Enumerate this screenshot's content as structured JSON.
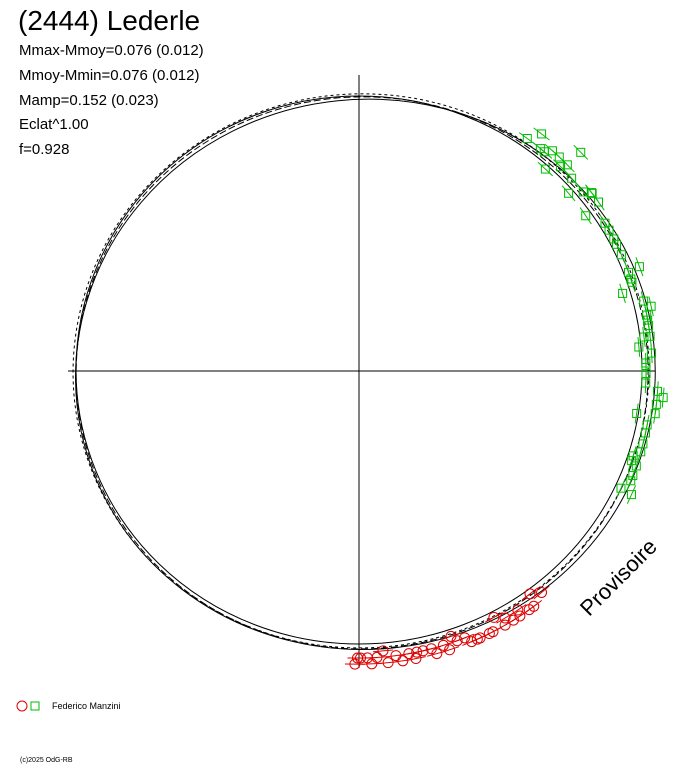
{
  "title": "(2444) Lederle",
  "stats": [
    "Mmax-Mmoy=0.076 (0.012)",
    "Mmoy-Mmin=0.076 (0.012)",
    "Mamp=0.152 (0.023)",
    "Eclat^1.00",
    "f=0.928"
  ],
  "legend": {
    "label": "Federico Manzini",
    "circle_color": "#dd0000",
    "square_color": "#00bb00"
  },
  "watermark": "Provisoire",
  "copyright": "(c)2025 OdG-RB",
  "chart_data": {
    "type": "scatter",
    "projection": "polar light curve",
    "axes": "cross-hair through centre",
    "series": [
      {
        "marker": "square",
        "color": "#00bb00",
        "error_bars": true,
        "points": [
          [
            35.9,
            0.047
          ],
          [
            37.6,
            0.049
          ],
          [
            39.2,
            0.047
          ],
          [
            40.2,
            0.047
          ],
          [
            41.3,
            0.048
          ],
          [
            42.7,
            0.045
          ],
          [
            43.1,
            0.048
          ],
          [
            44.6,
            0.047
          ],
          [
            45.3,
            0.048
          ],
          [
            45.4,
            0.051
          ],
          [
            47.8,
            0.047
          ],
          [
            49.7,
            0.045
          ],
          [
            51.4,
            0.047
          ],
          [
            52.5,
            0.048
          ],
          [
            52.7,
            0.048
          ],
          [
            54.8,
            0.048
          ],
          [
            55.6,
            0.045
          ],
          [
            59.0,
            0.047
          ],
          [
            60.6,
            0.047
          ],
          [
            62.6,
            0.047
          ],
          [
            63.8,
            0.047
          ],
          [
            66.1,
            0.047
          ],
          [
            69.6,
            0.049
          ],
          [
            69.9,
            0.047
          ],
          [
            71.3,
            0.047
          ],
          [
            72.0,
            0.047
          ],
          [
            73.6,
            0.045
          ],
          [
            76.2,
            0.048
          ],
          [
            77.5,
            0.049
          ],
          [
            79.0,
            0.048
          ],
          [
            80.0,
            0.048
          ],
          [
            81.1,
            0.048
          ],
          [
            83.2,
            0.048
          ],
          [
            83.2,
            0.047
          ],
          [
            85.1,
            0.046
          ],
          [
            86.5,
            0.048
          ],
          [
            88.4,
            0.047
          ],
          [
            89.3,
            0.047
          ],
          [
            90.5,
            0.047
          ],
          [
            92.4,
            0.047
          ],
          [
            93.9,
            0.049
          ],
          [
            95.0,
            0.05
          ],
          [
            96.4,
            0.049
          ],
          [
            98.2,
            0.049
          ],
          [
            98.7,
            0.046
          ],
          [
            100.6,
            0.048
          ],
          [
            102.2,
            0.048
          ],
          [
            104.4,
            0.048
          ],
          [
            106.0,
            0.048
          ],
          [
            107.2,
            0.047
          ],
          [
            108.2,
            0.047
          ],
          [
            108.9,
            0.048
          ],
          [
            110.9,
            0.048
          ],
          [
            112.0,
            0.048
          ],
          [
            114.1,
            0.047
          ],
          [
            114.4,
            0.049
          ]
        ]
      },
      {
        "marker": "circle",
        "color": "#dd0000",
        "error_bars": true,
        "points": [
          [
            140.5,
            0.047
          ],
          [
            142.5,
            0.046
          ],
          [
            143.4,
            0.048
          ],
          [
            144.5,
            0.048
          ],
          [
            146.4,
            0.047
          ],
          [
            146.7,
            0.048
          ],
          [
            148.2,
            0.048
          ],
          [
            149.4,
            0.047
          ],
          [
            150.1,
            0.048
          ],
          [
            151.3,
            0.046
          ],
          [
            152.8,
            0.048
          ],
          [
            153.6,
            0.048
          ],
          [
            155.6,
            0.048
          ],
          [
            156.2,
            0.048
          ],
          [
            157.4,
            0.048
          ],
          [
            158.4,
            0.047
          ],
          [
            160.0,
            0.047
          ],
          [
            160.9,
            0.046
          ],
          [
            162.0,
            0.048
          ],
          [
            162.9,
            0.047
          ],
          [
            164.6,
            0.048
          ],
          [
            165.4,
            0.047
          ],
          [
            167.1,
            0.047
          ],
          [
            168.4,
            0.047
          ],
          [
            168.8,
            0.048
          ],
          [
            170.0,
            0.047
          ],
          [
            171.4,
            0.048
          ],
          [
            172.6,
            0.047
          ],
          [
            174.3,
            0.048
          ],
          [
            175.1,
            0.046
          ],
          [
            176.4,
            0.047
          ],
          [
            177.5,
            0.048
          ],
          [
            178.3,
            0.047
          ],
          [
            179.7,
            0.047
          ],
          [
            180.3,
            0.047
          ],
          [
            180.8,
            0.048
          ]
        ]
      }
    ]
  }
}
